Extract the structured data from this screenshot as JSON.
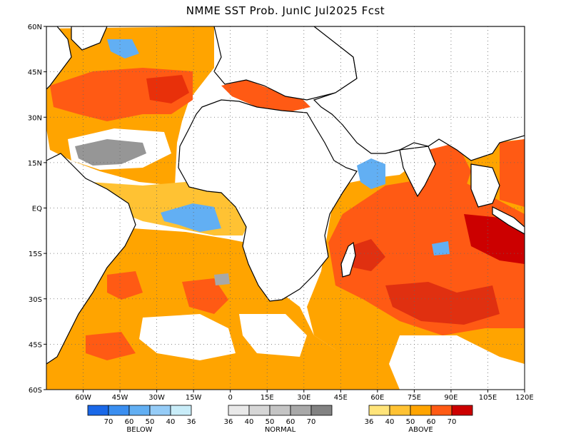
{
  "title": "NMME SST Prob. JunIC  Jul2025 Fcst",
  "map": {
    "lon_range": [
      -75,
      120
    ],
    "lat_range": [
      -60,
      60
    ],
    "lon_ticks": [
      "60W",
      "45W",
      "30W",
      "15W",
      "0",
      "15E",
      "30E",
      "45E",
      "60E",
      "75E",
      "90E",
      "105E",
      "120E"
    ],
    "lat_ticks": [
      "60N",
      "45N",
      "30N",
      "15N",
      "EQ",
      "15S",
      "30S",
      "45S",
      "60S"
    ],
    "grid": "dotted"
  },
  "legends": [
    {
      "name": "BELOW",
      "colors": [
        "#1a68e8",
        "#3a8ef0",
        "#62aff3",
        "#95ccf7",
        "#c8ecf8"
      ],
      "labels": [
        "70",
        "60",
        "50",
        "40",
        "36"
      ]
    },
    {
      "name": "NORMAL",
      "colors": [
        "#e9e9e9",
        "#d6d6d6",
        "#c4c4c4",
        "#a8a8a8",
        "#828282"
      ],
      "labels": [
        "36",
        "40",
        "50",
        "60",
        "70"
      ]
    },
    {
      "name": "ABOVE",
      "colors": [
        "#ffe47a",
        "#ffc233",
        "#ffa400",
        "#ff5a14",
        "#cc0000"
      ],
      "labels": [
        "36",
        "40",
        "50",
        "60",
        "70"
      ]
    }
  ]
}
